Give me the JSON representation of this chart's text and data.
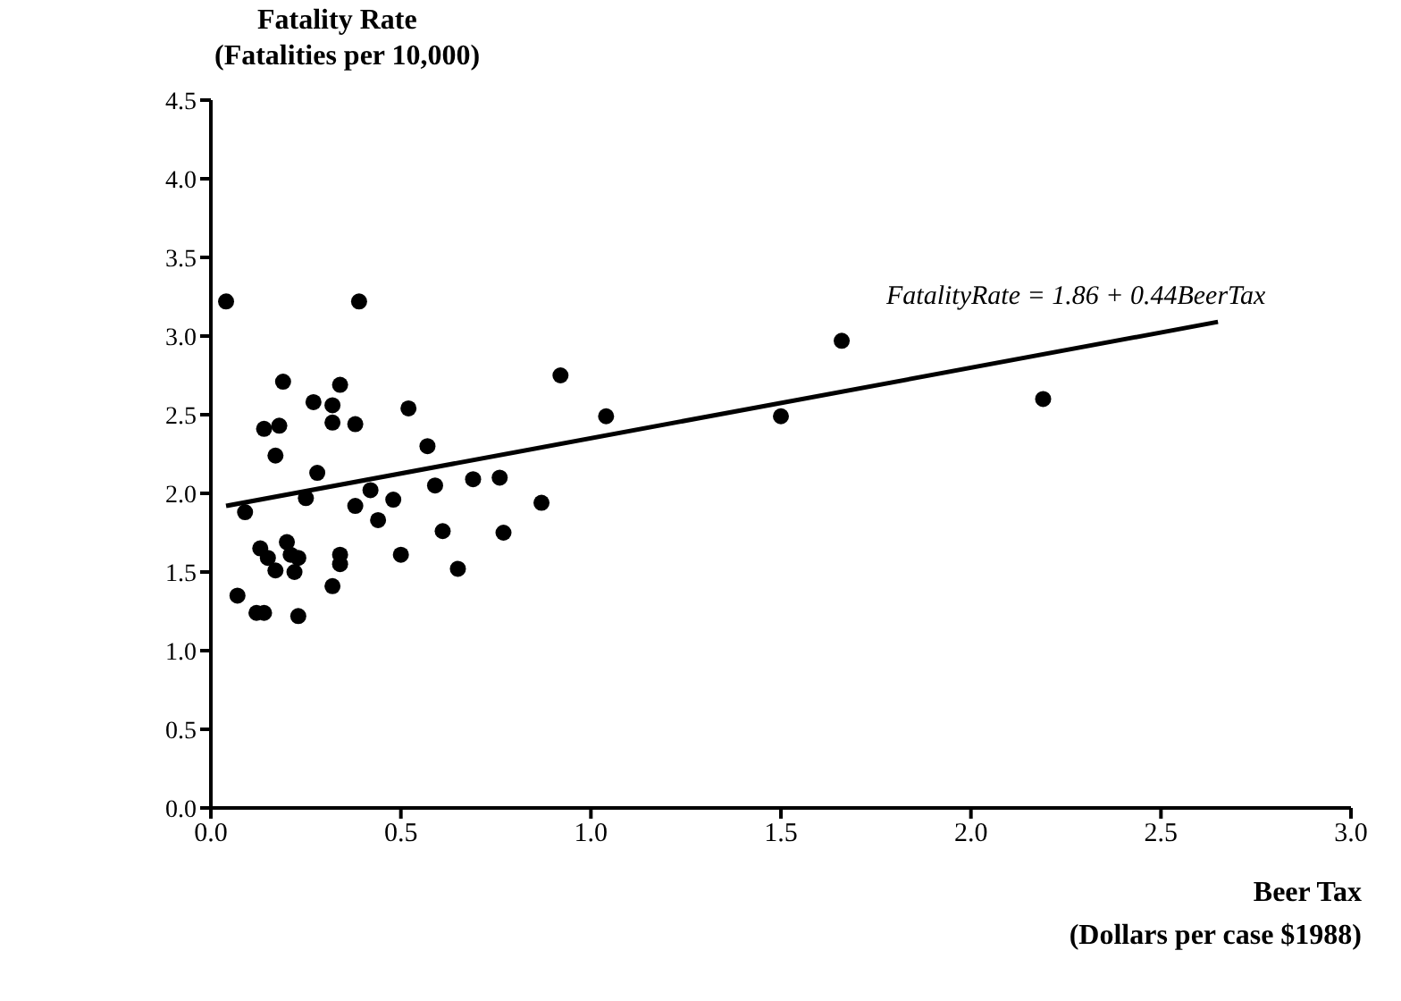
{
  "chart_data": {
    "type": "scatter",
    "ylabel": "Fatality Rate\n(Fatalities per 10,000)",
    "xlabel": "Beer Tax\n(Dollars per case $1988)",
    "annotations": [
      "FatalityRate = 1.86 + 0.44BeerTax"
    ],
    "xlim": [
      0,
      3
    ],
    "ylim": [
      0,
      4.5
    ],
    "xticks": [
      {
        "value": 0,
        "label": "0.0"
      },
      0.5,
      {
        "value": 1,
        "label": "1.0"
      },
      1.5,
      {
        "value": 2,
        "label": "2.0"
      },
      2.5,
      {
        "value": 3,
        "label": "3.0"
      }
    ],
    "yticks": [
      {
        "value": 0,
        "label": "0.0"
      },
      0.5,
      {
        "value": 1,
        "label": "1.0"
      },
      1.5,
      {
        "value": 2,
        "label": "2.0"
      },
      2.5,
      {
        "value": 3,
        "label": "3.0"
      },
      3.5,
      {
        "value": 4,
        "label": "4.0"
      },
      4.5
    ],
    "grid": false,
    "legend": false,
    "marker": "circle",
    "series": [
      {
        "type": "scatter",
        "color": "#000000",
        "x": [
          0.04,
          0.39,
          0.19,
          0.34,
          0.27,
          0.32,
          0.32,
          0.38,
          0.14,
          0.18,
          0.52,
          0.17,
          0.28,
          0.57,
          0.92,
          1.04,
          0.09,
          0.25,
          0.42,
          0.38,
          0.44,
          0.48,
          0.59,
          0.69,
          0.76,
          0.87,
          0.61,
          0.77,
          0.5,
          0.65,
          0.34,
          0.34,
          0.32,
          0.13,
          0.15,
          0.17,
          0.2,
          0.21,
          0.23,
          0.22,
          0.07,
          0.12,
          0.14,
          0.23,
          1.5,
          1.66,
          2.19
        ],
        "values": [
          3.22,
          3.22,
          2.71,
          2.69,
          2.58,
          2.56,
          2.45,
          2.44,
          2.41,
          2.43,
          2.54,
          2.24,
          2.13,
          2.3,
          2.75,
          2.49,
          1.88,
          1.97,
          2.02,
          1.92,
          1.83,
          1.96,
          2.05,
          2.09,
          2.1,
          1.94,
          1.76,
          1.75,
          1.61,
          1.52,
          1.61,
          1.55,
          1.41,
          1.65,
          1.59,
          1.51,
          1.69,
          1.61,
          1.59,
          1.5,
          1.35,
          1.24,
          1.24,
          1.22,
          2.49,
          2.97,
          2.6
        ]
      },
      {
        "type": "line",
        "color": "#000000",
        "marker": "none",
        "x": [
          0.04,
          2.65
        ],
        "values": [
          1.92,
          3.09
        ]
      }
    ]
  }
}
